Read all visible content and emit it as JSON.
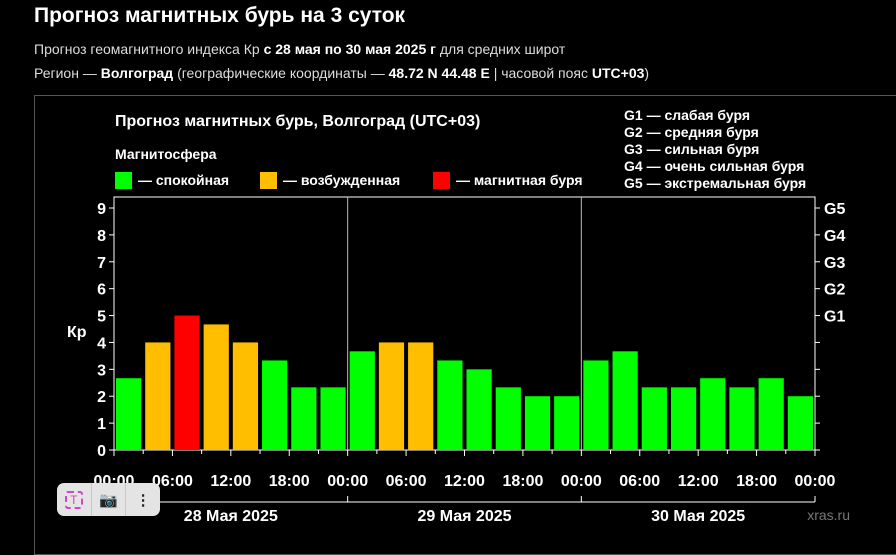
{
  "header": {
    "title": "Прогноз магнитных бурь на 3 суток",
    "line1_pre": "Прогноз геомагнитного индекса Кр ",
    "line1_bold": "с 28 мая по 30 мая 2025 г",
    "line1_post": " для средних широт",
    "line2_pre": "Регион — ",
    "line2_city": "Волгоград",
    "line2_mid": " (географические координаты — ",
    "line2_coords": "48.72 N 44.48 E",
    "line2_mid2": " | часовой пояс ",
    "line2_tz": "UTC+03",
    "line2_post": ")"
  },
  "toolbar": {
    "text_icon": "T",
    "camera_icon": "camera-icon",
    "more_icon": "⋮"
  },
  "chart_data": {
    "type": "bar",
    "title": "Прогноз магнитных бурь, Волгоград (UTC+03)",
    "legend_title": "Магнитосфера",
    "legend": [
      {
        "label": "— спокойная",
        "color": "#00ff00"
      },
      {
        "label": "— возбужденная",
        "color": "#ffbf00"
      },
      {
        "label": "— магнитная буря",
        "color": "#ff0000"
      }
    ],
    "g_legend": [
      "G1 — слабая буря",
      "G2 — средняя буря",
      "G3 — сильная буря",
      "G4 — очень сильная буря",
      "G5 — экстремальная буря"
    ],
    "ylabel": "Кр",
    "ylim": [
      0,
      9.4
    ],
    "yticks": [
      0,
      1,
      2,
      3,
      4,
      5,
      6,
      7,
      8,
      9
    ],
    "g_ticks": [
      {
        "label": "G1",
        "value": 5
      },
      {
        "label": "G2",
        "value": 6
      },
      {
        "label": "G3",
        "value": 7
      },
      {
        "label": "G4",
        "value": 8
      },
      {
        "label": "G5",
        "value": 9
      }
    ],
    "xticks": [
      "00:00",
      "06:00",
      "12:00",
      "18:00",
      "00:00",
      "06:00",
      "12:00",
      "18:00",
      "00:00",
      "06:00",
      "12:00",
      "18:00",
      "00:00"
    ],
    "days": [
      "28 Мая 2025",
      "29 Мая 2025",
      "30 Мая 2025"
    ],
    "values": [
      2.67,
      4,
      5,
      4.67,
      4,
      3.33,
      2.33,
      2.33,
      3.67,
      4,
      4,
      3.33,
      3,
      2.33,
      2,
      2,
      3.33,
      3.67,
      2.33,
      2.33,
      2.67,
      2.33,
      2.67,
      2
    ],
    "watermark": "xras.ru"
  }
}
